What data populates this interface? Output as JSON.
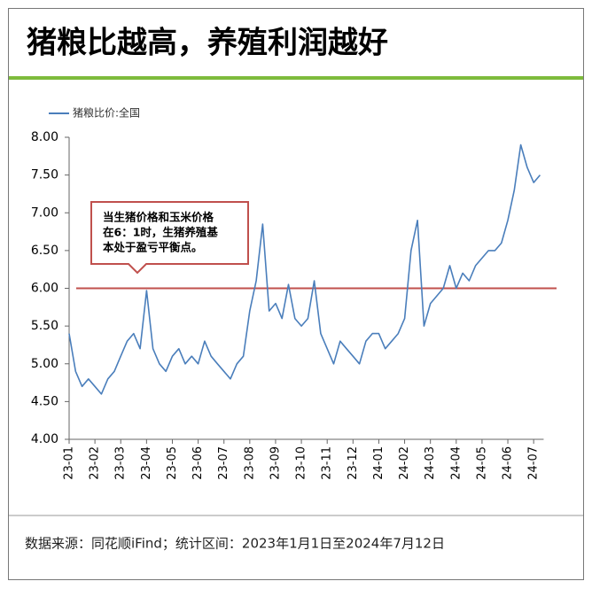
{
  "header": {
    "title": "猪粮比越高，养殖利润越好"
  },
  "chart_data": {
    "type": "line",
    "legend": "top-left",
    "categories": [
      "23-01",
      null,
      null,
      null,
      "23-02",
      null,
      null,
      null,
      "23-03",
      null,
      null,
      null,
      "23-04",
      null,
      null,
      null,
      "23-05",
      null,
      null,
      null,
      "23-06",
      null,
      null,
      null,
      "23-07",
      null,
      null,
      null,
      "23-08",
      null,
      null,
      null,
      "23-09",
      null,
      null,
      null,
      "23-10",
      null,
      null,
      null,
      "23-11",
      null,
      null,
      null,
      "23-12",
      null,
      null,
      null,
      "24-01",
      null,
      null,
      null,
      "24-02",
      null,
      null,
      null,
      "24-03",
      null,
      null,
      null,
      "24-04",
      null,
      null,
      null,
      "24-05",
      null,
      null,
      null,
      "24-06",
      null,
      null,
      null,
      "24-07",
      null
    ],
    "series": [
      {
        "name": "猪粮比价:全国",
        "color": "#4a7ebb",
        "values": [
          5.4,
          4.9,
          4.7,
          4.8,
          4.7,
          4.6,
          4.8,
          4.9,
          5.1,
          5.3,
          5.4,
          5.2,
          5.97,
          5.2,
          5.0,
          4.9,
          5.1,
          5.2,
          5.0,
          5.1,
          5.0,
          5.3,
          5.1,
          5.0,
          4.9,
          4.8,
          5.0,
          5.1,
          5.7,
          6.1,
          6.85,
          5.7,
          5.8,
          5.6,
          6.05,
          5.6,
          5.5,
          5.6,
          6.1,
          5.4,
          5.2,
          5.0,
          5.3,
          5.2,
          5.1,
          5.0,
          5.3,
          5.4,
          5.4,
          5.2,
          5.3,
          5.4,
          5.6,
          6.5,
          6.9,
          5.5,
          5.8,
          5.9,
          6.0,
          6.3,
          6.0,
          6.2,
          6.1,
          6.3,
          6.4,
          6.5,
          6.5,
          6.6,
          6.9,
          7.3,
          7.9,
          7.6,
          7.4,
          7.5
        ]
      }
    ],
    "ylim": [
      4,
      8
    ],
    "yticks": [
      {
        "value": 4,
        "label": "4.00"
      },
      {
        "value": 4.5,
        "label": "4.50"
      },
      {
        "value": 5,
        "label": "5.00"
      },
      {
        "value": 5.5,
        "label": "5.50"
      },
      {
        "value": 6,
        "label": "6.00"
      },
      {
        "value": 6.5,
        "label": "6.50"
      },
      {
        "value": 7,
        "label": "7.00"
      },
      {
        "value": 7.5,
        "label": "7.50"
      },
      {
        "value": 8,
        "label": "8.00"
      }
    ],
    "reference_line": {
      "value": 6,
      "color": "#c0504d"
    },
    "annotation": [
      "当生猪价格和玉米价格",
      "在6：1时，生猪养殖基",
      "本处于盈亏平衡点。"
    ]
  },
  "footer": {
    "source": "数据来源：同花顺iFind；统计区间：2023年1月1日至2024年7月12日"
  }
}
